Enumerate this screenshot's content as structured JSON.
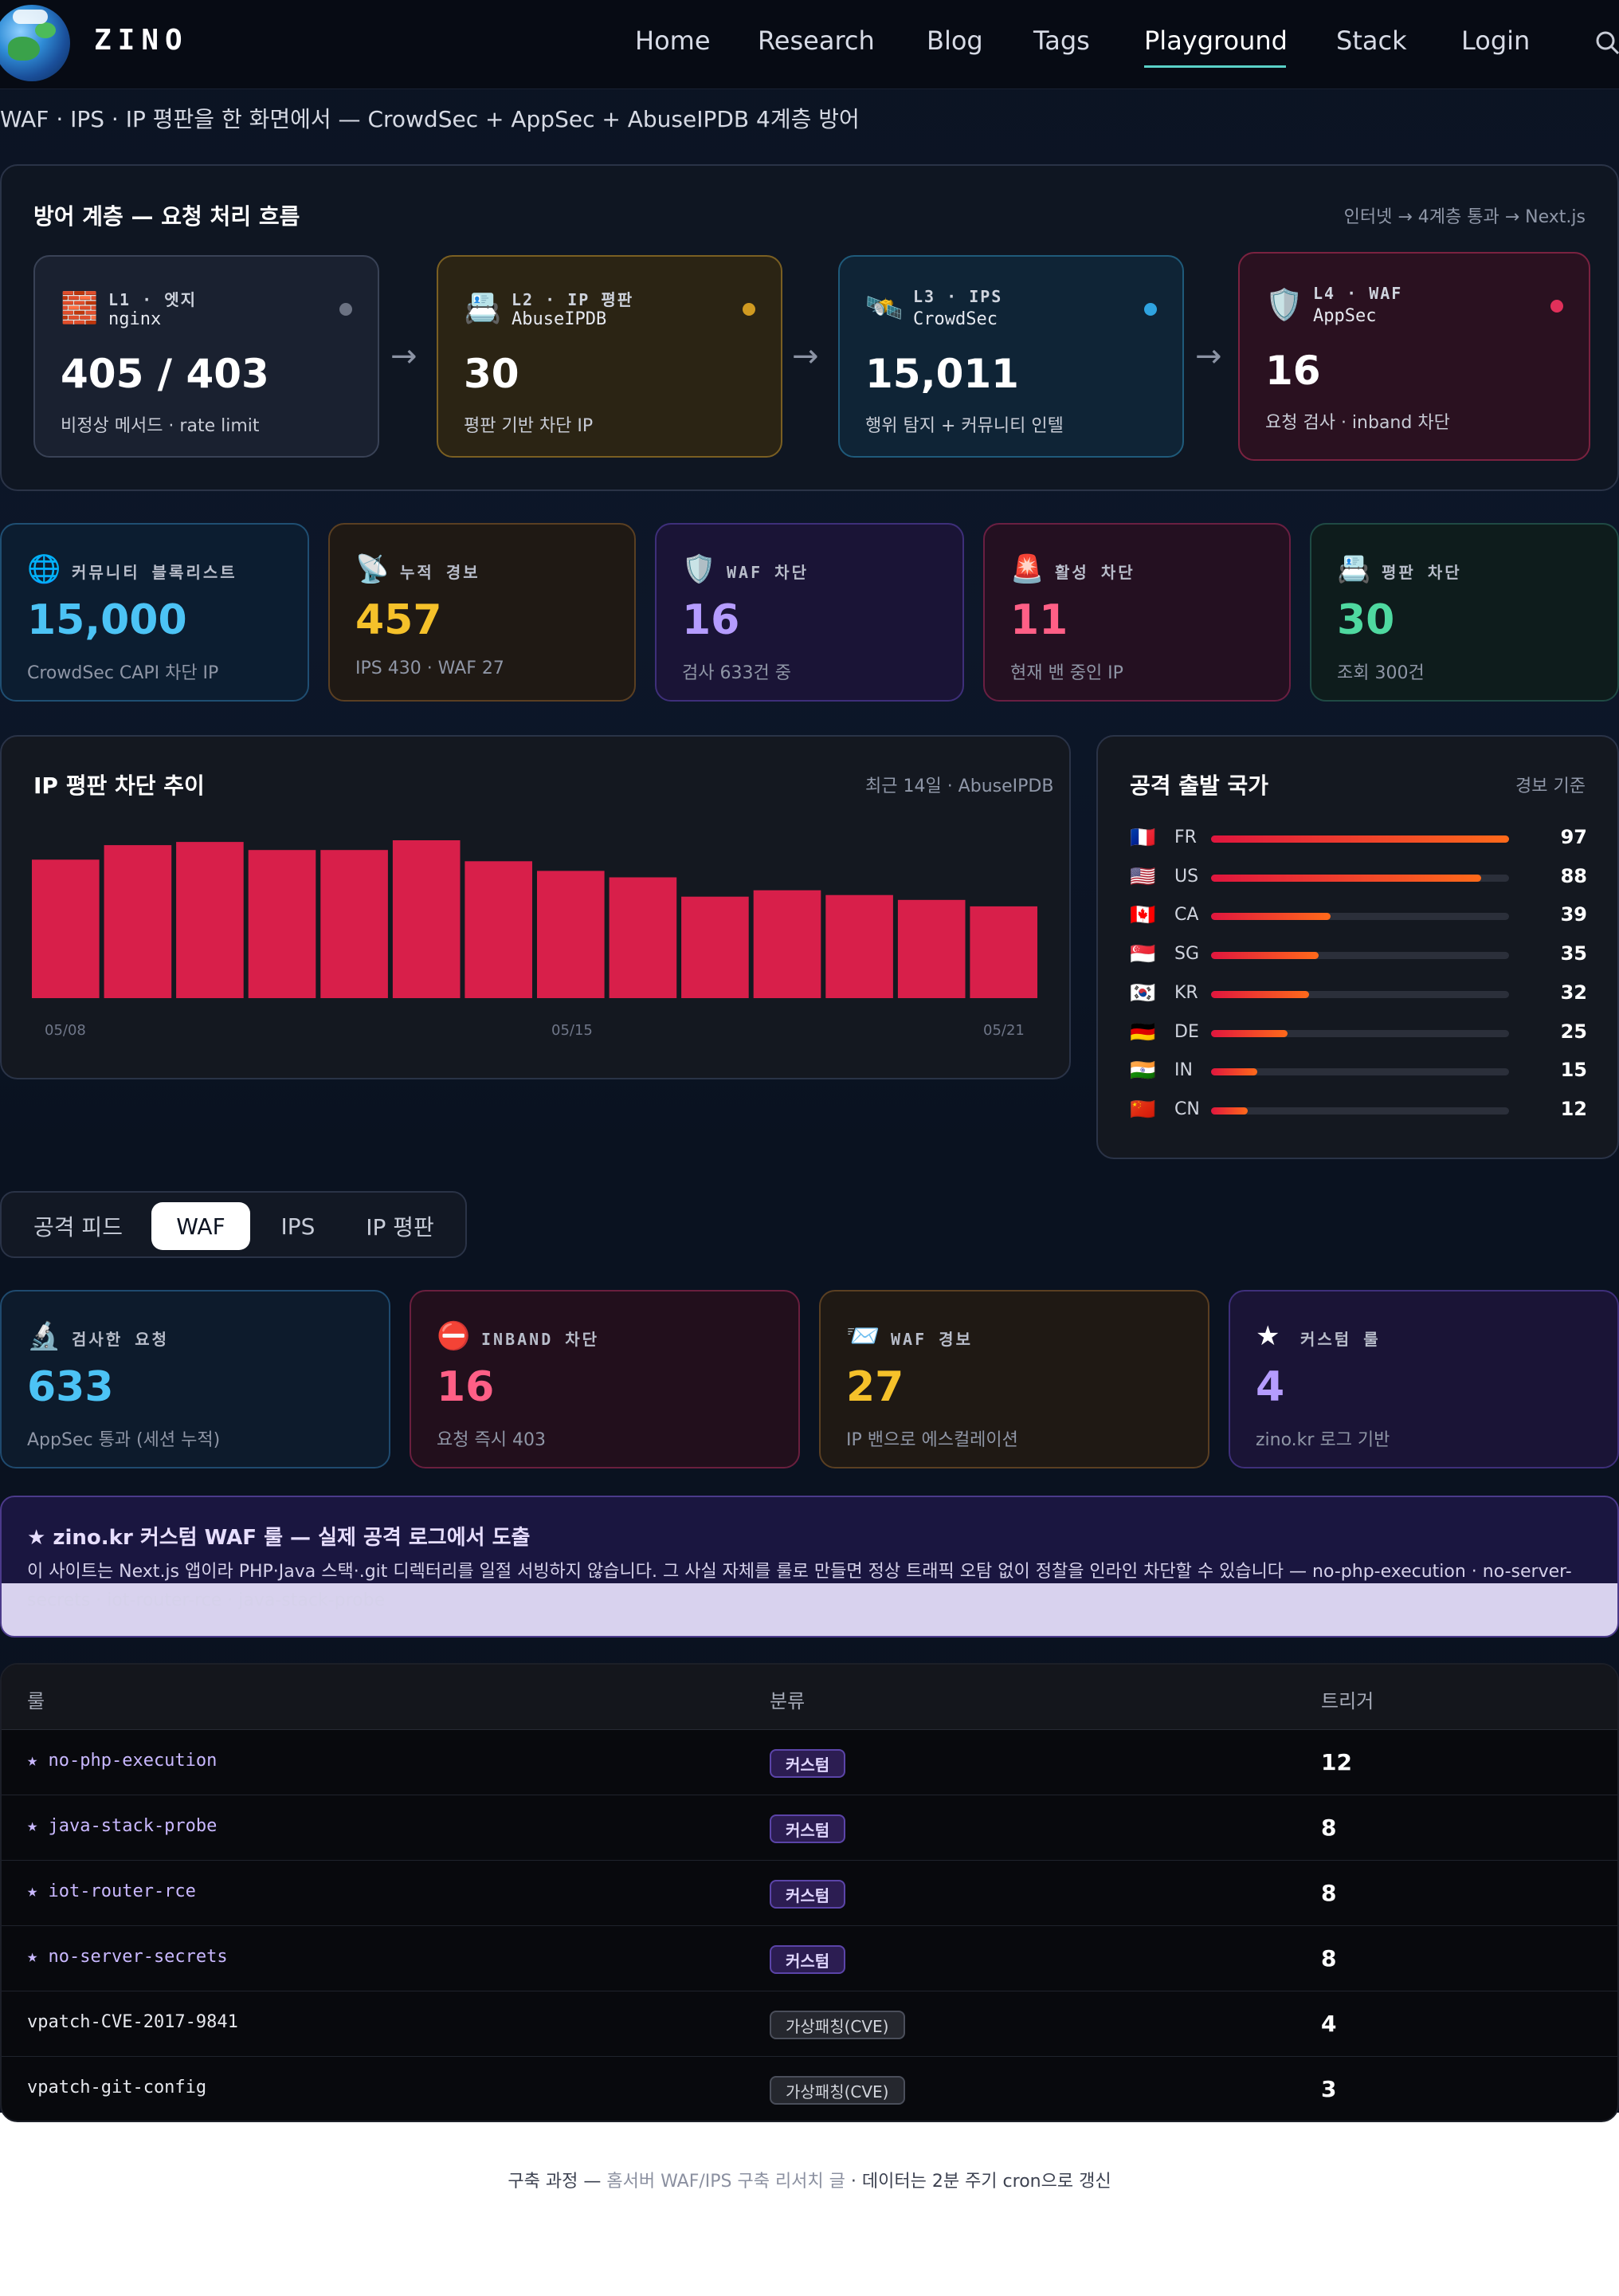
{
  "nav": {
    "brand": "ZINO",
    "links": [
      "Home",
      "Research",
      "Blog",
      "Tags",
      "Playground",
      "Stack",
      "Login"
    ],
    "active": "Playground"
  },
  "page": {
    "subtitle": "WAF · IPS · IP 평판을 한 화면에서 — CrowdSec + AppSec + AbuseIPDB 4계층 방어"
  },
  "flow": {
    "title": "방어 계층 — 요청 처리 흐름",
    "meta": "인터넷 → 4계층 통과 → Next.js",
    "layers": [
      {
        "tag": "L1 · 엣지",
        "sub": "nginx",
        "value": "405 / 403",
        "desc": "비정상 메서드 · rate limit",
        "icon": "brick-wall-icon",
        "emoji": "🧱"
      },
      {
        "tag": "L2 · IP 평판",
        "sub": "AbuseIPDB",
        "value": "30",
        "desc": "평판 기반 차단 IP",
        "icon": "card-index-icon",
        "emoji": "📇"
      },
      {
        "tag": "L3 · IPS",
        "sub": "CrowdSec",
        "value": "15,011",
        "desc": "행위 탐지 + 커뮤니티 인텔",
        "icon": "satellite-icon",
        "emoji": "🛰️"
      },
      {
        "tag": "L4 · WAF",
        "sub": "AppSec",
        "value": "16",
        "desc": "요청 검사 · inband 차단",
        "icon": "shield-icon",
        "emoji": "🛡️"
      }
    ]
  },
  "stats": [
    {
      "label": "커뮤니티 블록리스트",
      "value": "15,000",
      "desc": "CrowdSec CAPI 차단 IP",
      "icon": "globe-icon",
      "emoji": "🌐"
    },
    {
      "label": "누적 경보",
      "value": "457",
      "desc": "IPS 430 · WAF 27",
      "icon": "antenna-icon",
      "emoji": "📡"
    },
    {
      "label": "WAF 차단",
      "value": "16",
      "desc": "검사 633건 중",
      "icon": "shield-icon",
      "emoji": "🛡️"
    },
    {
      "label": "활성 차단",
      "value": "11",
      "desc": "현재 밴 중인 IP",
      "icon": "siren-icon",
      "emoji": "🚨"
    },
    {
      "label": "평판 차단",
      "value": "30",
      "desc": "조회 300건",
      "icon": "card-index-icon",
      "emoji": "📇"
    }
  ],
  "trend": {
    "title": "IP 평판 차단 추이",
    "meta": "최근 14일 · AbuseIPDB",
    "ticks": [
      "05/08",
      "05/15",
      "05/21"
    ]
  },
  "chart_data": {
    "type": "bar",
    "title": "IP 평판 차단 추이",
    "x": [
      "05/08",
      "05/09",
      "05/10",
      "05/11",
      "05/12",
      "05/13",
      "05/14",
      "05/15",
      "05/16",
      "05/17",
      "05/18",
      "05/19",
      "05/20",
      "05/21"
    ],
    "values": [
      86,
      95,
      97,
      92,
      92,
      98,
      85,
      79,
      75,
      63,
      67,
      64,
      61,
      57
    ],
    "ylim": [
      0,
      100
    ],
    "color": "#d81f4a",
    "grid": false
  },
  "countries": {
    "title": "공격 출발 국가",
    "meta": "경보 기준",
    "max": 97,
    "items": [
      {
        "code": "FR",
        "value": 97,
        "emoji": "🇫🇷"
      },
      {
        "code": "US",
        "value": 88,
        "emoji": "🇺🇸"
      },
      {
        "code": "CA",
        "value": 39,
        "emoji": "🇨🇦"
      },
      {
        "code": "SG",
        "value": 35,
        "emoji": "🇸🇬"
      },
      {
        "code": "KR",
        "value": 32,
        "emoji": "🇰🇷"
      },
      {
        "code": "DE",
        "value": 25,
        "emoji": "🇩🇪"
      },
      {
        "code": "IN",
        "value": 15,
        "emoji": "🇮🇳"
      },
      {
        "code": "CN",
        "value": 12,
        "emoji": "🇨🇳"
      }
    ]
  },
  "tabs": {
    "items": [
      "공격 피드",
      "WAF",
      "IPS",
      "IP 평판"
    ],
    "active": "WAF"
  },
  "waf_stats": [
    {
      "label": "검사한 요청",
      "value": "633",
      "desc": "AppSec 통과 (세션 누적)",
      "icon": "microscope-icon",
      "emoji": "🔬"
    },
    {
      "label": "INBAND 차단",
      "value": "16",
      "desc": "요청 즉시 403",
      "icon": "no-entry-icon",
      "emoji": "⛔"
    },
    {
      "label": "WAF 경보",
      "value": "27",
      "desc": "IP 밴으로 에스컬레이션",
      "icon": "envelope-icon",
      "emoji": "📨"
    },
    {
      "label": "커스텀 룰",
      "value": "4",
      "desc": "zino.kr 로그 기반",
      "icon": "star-icon",
      "emoji": "★"
    }
  ],
  "banner": {
    "title": "★ zino.kr 커스텀 WAF 룰 — 실제 공격 로그에서 도출",
    "text": "이 사이트는 Next.js 앱이라 PHP·Java 스택·.git 디렉터리를 일절 서빙하지 않습니다. 그 사실 자체를 룰로 만들면 정상 트래픽 오탐 없이 정찰을 인라인 차단할 수 있습니다 — no-php-execution · no-server-secrets · iot-router-rce · java-stack-probe"
  },
  "rules": {
    "headers": [
      "룰",
      "분류",
      "트리거"
    ],
    "rows": [
      {
        "name": "★ no-php-execution",
        "category": "커스텀",
        "triggers": "12",
        "custom": true
      },
      {
        "name": "★ java-stack-probe",
        "category": "커스텀",
        "triggers": "8",
        "custom": true
      },
      {
        "name": "★ iot-router-rce",
        "category": "커스텀",
        "triggers": "8",
        "custom": true
      },
      {
        "name": "★ no-server-secrets",
        "category": "커스텀",
        "triggers": "8",
        "custom": true
      },
      {
        "name": "vpatch-CVE-2017-9841",
        "category": "가상패칭(CVE)",
        "triggers": "4",
        "custom": false
      },
      {
        "name": "vpatch-git-config",
        "category": "가상패칭(CVE)",
        "triggers": "3",
        "custom": false
      }
    ]
  },
  "footer": {
    "prefix": "구축 과정 — ",
    "link": "홈서버 WAF/IPS 구축 리서치 글",
    "suffix": " · 데이터는 2분 주기 cron으로 갱신"
  }
}
